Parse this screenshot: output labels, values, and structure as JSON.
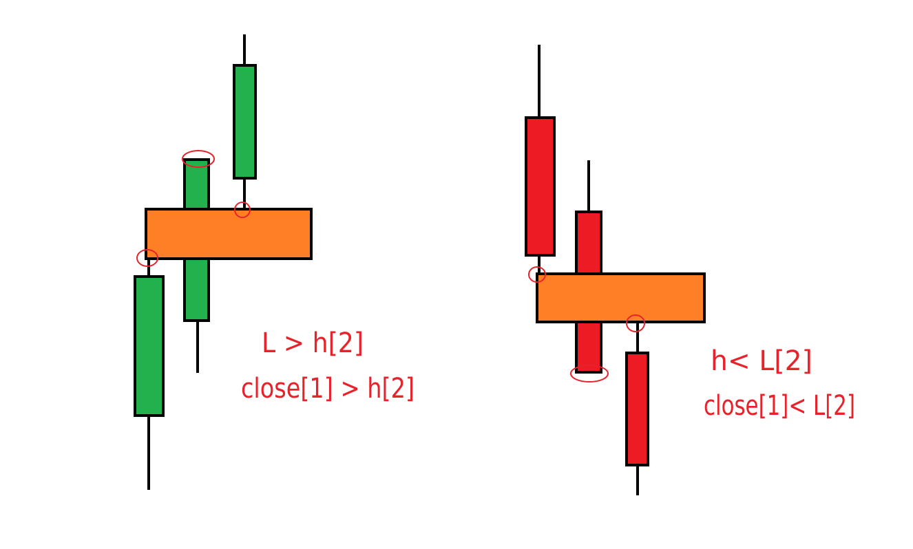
{
  "colors": {
    "bull": "#22b14c",
    "bear": "#ed1c24",
    "zone": "#ff7f27",
    "outline": "#000000",
    "annotation": "#e8222a"
  },
  "left_panel": {
    "condition_1": "L > h[2]",
    "condition_2": "close[1] > h[2]"
  },
  "right_panel": {
    "condition_1": "h< L[2]",
    "condition_2": "close[1]< L[2]"
  }
}
